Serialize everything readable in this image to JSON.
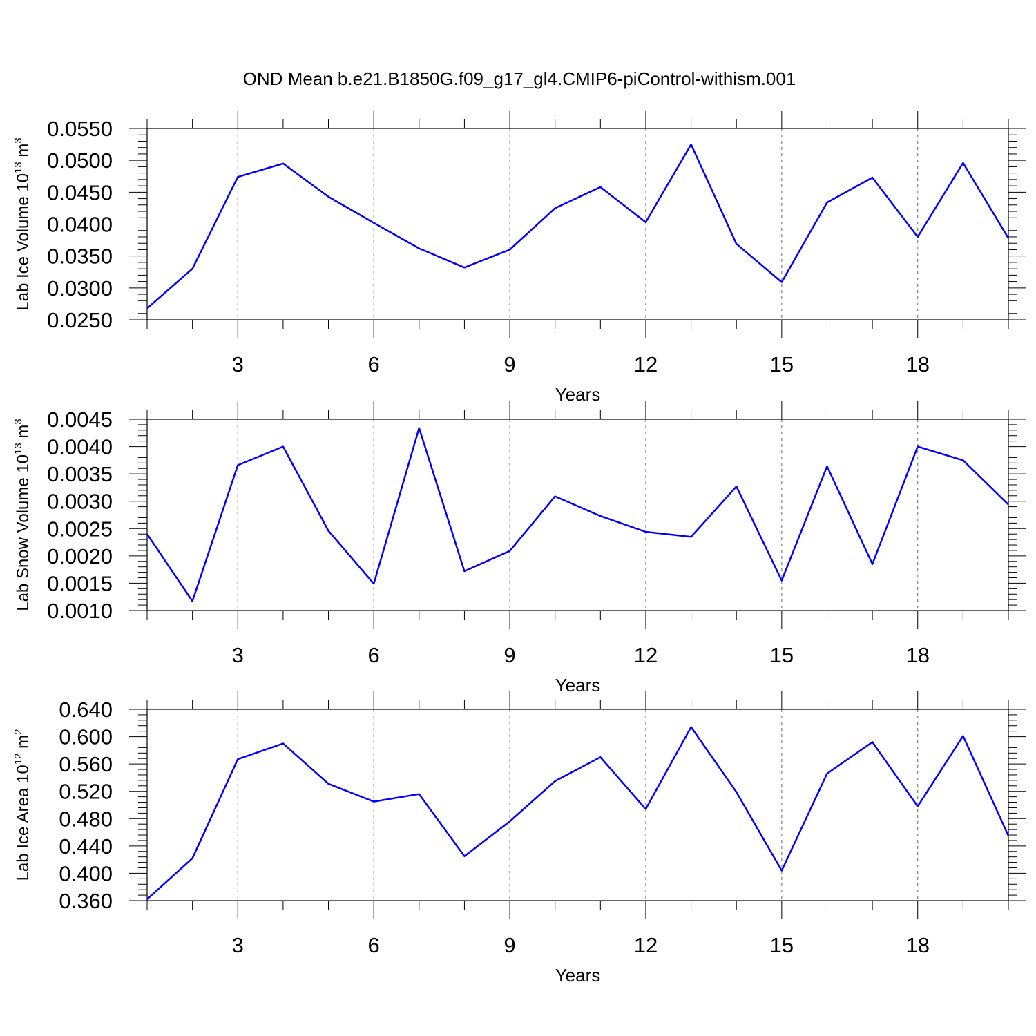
{
  "title": "OND Mean b.e21.B1850G.f09_g17_gl4.CMIP6-piControl-withism.001",
  "colors": {
    "line": "#0000ff",
    "axis": "#000000",
    "grid": "#666666"
  },
  "chart_data": [
    {
      "type": "line",
      "title": "",
      "xlabel": "Years",
      "ylabel": "Lab Ice Volume 10",
      "ylabel_sup": "13",
      "ylabel_unit": " m",
      "ylabel_unit_sup": "3",
      "xlim": [
        1,
        20
      ],
      "ylim": [
        0.025,
        0.055
      ],
      "xticks": [
        3,
        6,
        9,
        12,
        15,
        18
      ],
      "yticks": [
        "0.0250",
        "0.0300",
        "0.0350",
        "0.0400",
        "0.0450",
        "0.0500",
        "0.0550"
      ],
      "grid": "vertical dashed at major x ticks",
      "x": [
        1,
        2,
        3,
        4,
        5,
        6,
        7,
        8,
        9,
        10,
        11,
        12,
        13,
        14,
        15,
        16,
        17,
        18,
        19,
        20
      ],
      "y": [
        0.0268,
        0.033,
        0.0474,
        0.0495,
        0.0443,
        0.0402,
        0.0362,
        0.0332,
        0.036,
        0.0425,
        0.0458,
        0.0403,
        0.0525,
        0.0369,
        0.0309,
        0.0434,
        0.0473,
        0.038,
        0.0496,
        0.0378
      ]
    },
    {
      "type": "line",
      "title": "",
      "xlabel": "Years",
      "ylabel": "Lab Snow Volume 10",
      "ylabel_sup": "13",
      "ylabel_unit": " m",
      "ylabel_unit_sup": "3",
      "xlim": [
        1,
        20
      ],
      "ylim": [
        0.001,
        0.0045
      ],
      "xticks": [
        3,
        6,
        9,
        12,
        15,
        18
      ],
      "yticks": [
        "0.0010",
        "0.0015",
        "0.0020",
        "0.0025",
        "0.0030",
        "0.0035",
        "0.0040",
        "0.0045"
      ],
      "grid": "vertical dashed at major x ticks",
      "x": [
        1,
        2,
        3,
        4,
        5,
        6,
        7,
        8,
        9,
        10,
        11,
        12,
        13,
        14,
        15,
        16,
        17,
        18,
        19,
        20
      ],
      "y": [
        0.0024,
        0.00117,
        0.00366,
        0.004,
        0.00246,
        0.00149,
        0.00434,
        0.00172,
        0.00209,
        0.00309,
        0.00273,
        0.00244,
        0.00235,
        0.00327,
        0.00155,
        0.00364,
        0.00185,
        0.004,
        0.00375,
        0.00294
      ]
    },
    {
      "type": "line",
      "title": "",
      "xlabel": "Years",
      "ylabel": "Lab Ice Area 10",
      "ylabel_sup": "12",
      "ylabel_unit": " m",
      "ylabel_unit_sup": "2",
      "xlim": [
        1,
        20
      ],
      "ylim": [
        0.36,
        0.64
      ],
      "xticks": [
        3,
        6,
        9,
        12,
        15,
        18
      ],
      "yticks": [
        "0.360",
        "0.400",
        "0.440",
        "0.480",
        "0.520",
        "0.560",
        "0.600",
        "0.640"
      ],
      "grid": "vertical dashed at major x ticks",
      "x": [
        1,
        2,
        3,
        4,
        5,
        6,
        7,
        8,
        9,
        10,
        11,
        12,
        13,
        14,
        15,
        16,
        17,
        18,
        19,
        20
      ],
      "y": [
        0.362,
        0.422,
        0.567,
        0.59,
        0.531,
        0.505,
        0.516,
        0.425,
        0.476,
        0.535,
        0.57,
        0.494,
        0.614,
        0.519,
        0.404,
        0.546,
        0.592,
        0.498,
        0.601,
        0.455
      ]
    }
  ]
}
